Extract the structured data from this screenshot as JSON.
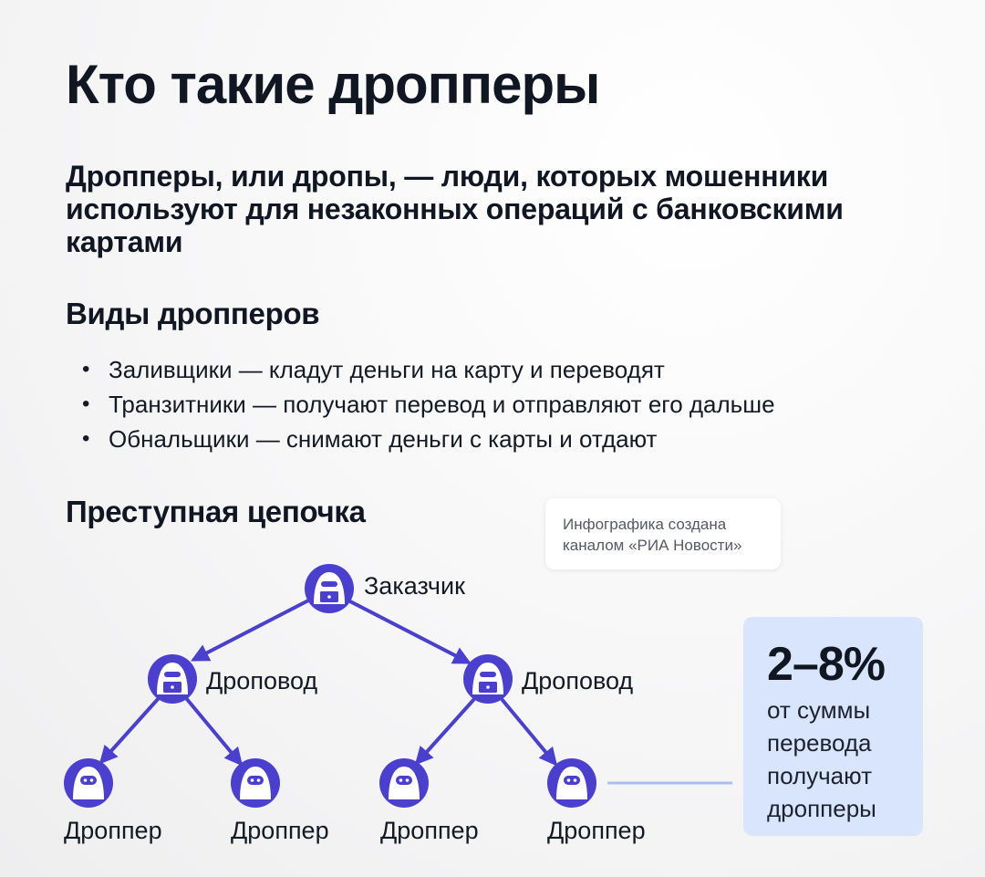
{
  "title": "Кто такие дропперы",
  "subtitle": "Дропперы, или дропы, — люди, которых мошенники используют для незаконных операций с банковскими картами",
  "types": {
    "heading": "Виды дропперов",
    "items": [
      "Заливщики — кладут деньги на карту и переводят",
      "Транзитники — получают перевод и отправляют его дальше",
      "Обнальщики — снимают деньги с карты и отдают"
    ]
  },
  "chain": {
    "heading": "Преступная цепочка",
    "customer": "Заказчик",
    "dropovod_left": "Дроповод",
    "dropovod_right": "Дроповод",
    "dropper_1": "Дроппер",
    "dropper_2": "Дроппер",
    "dropper_3": "Дроппер",
    "dropper_4": "Дроппер",
    "node_color": "#4a3fcf",
    "connector_color": "#a9bff0"
  },
  "credit": {
    "line1": "Инфографика создана",
    "line2": "каналом «РИА Новости»"
  },
  "stat": {
    "value": "2–8%",
    "caption_line1": "от суммы",
    "caption_line2": "перевода",
    "caption_line3": "получают",
    "caption_line4": "дропперы",
    "background": "#d8e5fd"
  },
  "icons": {
    "customer": "hooded-figure-with-laptop-icon",
    "dropovod": "hooded-figure-with-laptop-icon",
    "dropper": "hooded-figure-icon"
  }
}
